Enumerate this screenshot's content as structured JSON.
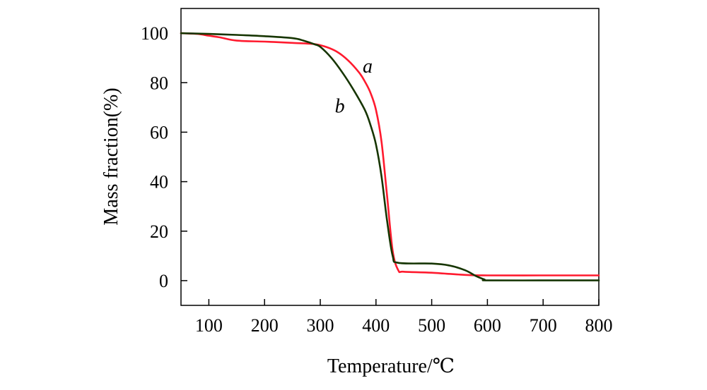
{
  "chart_data": {
    "type": "line",
    "xlabel": "Temperature/℃",
    "ylabel": "Mass fraction(%)",
    "xlim": [
      50,
      800
    ],
    "ylim": [
      -10,
      110
    ],
    "x_ticks": [
      100,
      200,
      300,
      400,
      500,
      600,
      700,
      800
    ],
    "y_ticks": [
      0,
      20,
      40,
      60,
      80,
      100
    ],
    "x_tick_labels": [
      "100",
      "200",
      "300",
      "400",
      "500",
      "600",
      "700",
      "800"
    ],
    "y_tick_labels": [
      "0",
      "20",
      "40",
      "60",
      "80",
      "100"
    ],
    "grid": false,
    "legend": "none",
    "series": [
      {
        "name": "a",
        "color": "#ff1a2e",
        "x": [
          50,
          80,
          100,
          120,
          150,
          200,
          250,
          290,
          310,
          330,
          350,
          370,
          380,
          390,
          400,
          410,
          420,
          430,
          440,
          450,
          500,
          560,
          600,
          700,
          800
        ],
        "y": [
          100,
          99.7,
          99,
          98.3,
          97,
          96.6,
          96.1,
          95.6,
          94.5,
          92.5,
          89,
          84,
          80.5,
          76,
          69,
          56,
          34,
          12,
          4.2,
          3.6,
          3.2,
          2.3,
          2.1,
          2.1,
          2.1
        ]
      },
      {
        "name": "b",
        "color": "#163500",
        "x": [
          50,
          100,
          150,
          200,
          250,
          270,
          290,
          300,
          320,
          340,
          360,
          380,
          390,
          400,
          410,
          420,
          430,
          440,
          500,
          530,
          560,
          580,
          595,
          600,
          700,
          800
        ],
        "y": [
          100,
          99.7,
          99.3,
          98.8,
          98,
          97,
          95.5,
          94.5,
          90,
          84,
          77,
          69,
          63,
          55,
          42,
          24,
          10,
          7.2,
          6.9,
          6.2,
          4.2,
          1.8,
          0.4,
          0.1,
          0.1,
          0.1
        ]
      }
    ],
    "annotations": [
      {
        "text": "a",
        "x": 385,
        "y": 84
      },
      {
        "text": "b",
        "x": 335,
        "y": 68
      }
    ]
  }
}
